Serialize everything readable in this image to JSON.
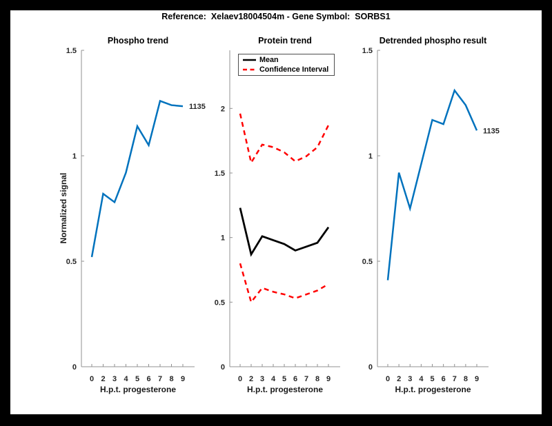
{
  "figure_title": "Reference:  Xelaev18004504m - Gene Symbol:  SORBS1",
  "colors": {
    "page_background": "#000000",
    "figure_background": "#ffffff",
    "phospho_line": "#0072BD",
    "mean_line": "#000000",
    "confidence_line": "#ff0000",
    "axis": "#909090",
    "tick_text": "#262626"
  },
  "chart_data": [
    {
      "id": "phospho-trend",
      "type": "line",
      "title": "Phospho trend",
      "xlabel": "H.p.t. progesterone",
      "ylabel": "Normalized signal",
      "categories": [
        "0",
        "2",
        "3",
        "4",
        "5",
        "6",
        "7",
        "8",
        "9"
      ],
      "ylim": [
        0,
        1.5
      ],
      "yticks": [
        0,
        0.5,
        1,
        1.5
      ],
      "ytick_labels": [
        "0",
        "0.5",
        "1",
        "1.5"
      ],
      "grid": false,
      "series": [
        {
          "name": "phospho",
          "color": "#0072BD",
          "style": "solid",
          "values": [
            0.52,
            0.82,
            0.78,
            0.92,
            1.14,
            1.05,
            1.26,
            1.24,
            1.235
          ]
        }
      ],
      "end_label": "1135"
    },
    {
      "id": "protein-trend",
      "type": "line",
      "title": "Protein trend",
      "xlabel": "H.p.t. progesterone",
      "ylabel": "",
      "categories": [
        "0",
        "2",
        "3",
        "4",
        "5",
        "6",
        "7",
        "8",
        "9"
      ],
      "ylim": [
        0,
        2.45
      ],
      "yticks": [
        0,
        0.5,
        1,
        1.5,
        2
      ],
      "ytick_labels": [
        "0",
        "0.5",
        "1",
        "1.5",
        "2"
      ],
      "grid": false,
      "legend": {
        "position": "top-left-inside",
        "entries": [
          {
            "label": "Mean",
            "color": "#000000",
            "style": "solid"
          },
          {
            "label": "Confidence Interval",
            "color": "#ff0000",
            "style": "dashed"
          }
        ]
      },
      "series": [
        {
          "name": "Mean",
          "color": "#000000",
          "style": "solid",
          "values": [
            1.23,
            0.87,
            1.01,
            0.98,
            0.95,
            0.9,
            0.93,
            0.96,
            1.08
          ]
        },
        {
          "name": "Confidence Interval upper",
          "color": "#ff0000",
          "style": "dashed",
          "values": [
            1.96,
            1.58,
            1.72,
            1.7,
            1.66,
            1.59,
            1.63,
            1.7,
            1.87
          ]
        },
        {
          "name": "Confidence Interval lower",
          "color": "#ff0000",
          "style": "dashed",
          "values": [
            0.8,
            0.5,
            0.61,
            0.58,
            0.56,
            0.53,
            0.56,
            0.59,
            0.64
          ]
        }
      ]
    },
    {
      "id": "detrended-phospho-result",
      "type": "line",
      "title": "Detrended phospho result",
      "xlabel": "H.p.t. progesterone",
      "ylabel": "",
      "categories": [
        "0",
        "2",
        "3",
        "4",
        "5",
        "6",
        "7",
        "8",
        "9"
      ],
      "ylim": [
        0,
        1.5
      ],
      "yticks": [
        0,
        0.5,
        1,
        1.5
      ],
      "ytick_labels": [
        "0",
        "0.5",
        "1",
        "1.5"
      ],
      "grid": false,
      "series": [
        {
          "name": "detrended phospho",
          "color": "#0072BD",
          "style": "solid",
          "values": [
            0.41,
            0.92,
            0.75,
            0.96,
            1.17,
            1.15,
            1.31,
            1.24,
            1.12
          ]
        }
      ],
      "end_label": "1135"
    }
  ]
}
